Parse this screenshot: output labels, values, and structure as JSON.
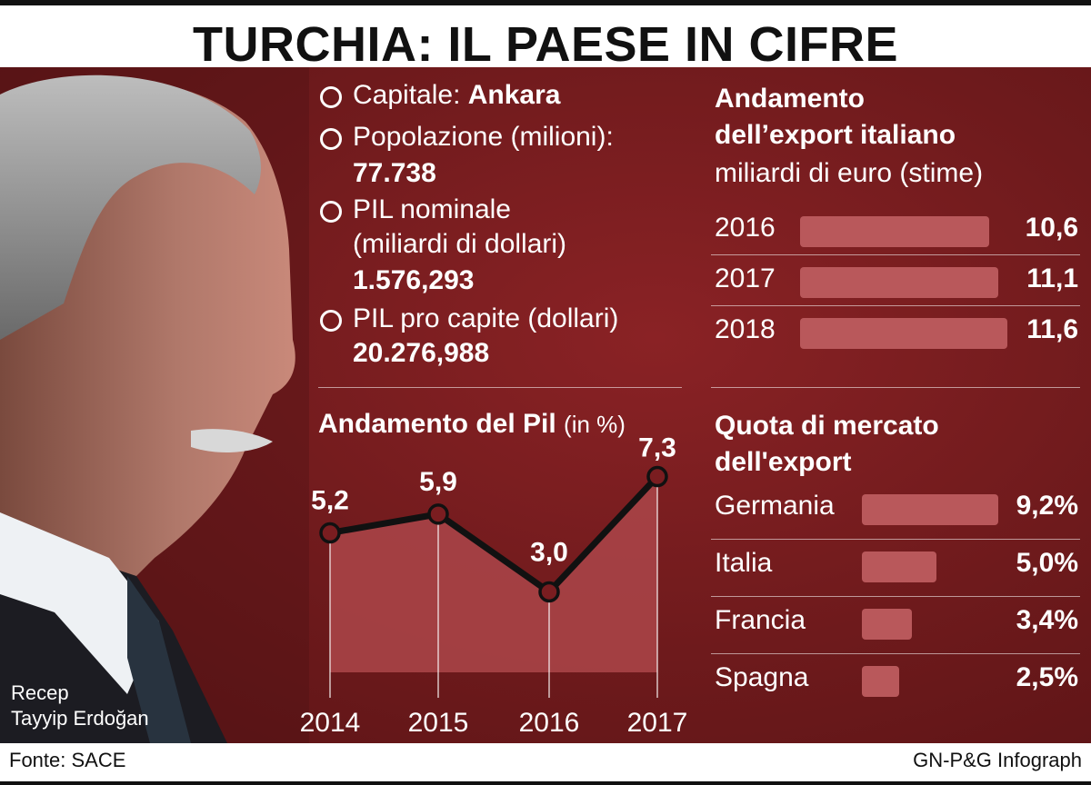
{
  "title": "TURCHIA: IL PAESE IN CIFRE",
  "facts": {
    "capital_label": "Capitale: ",
    "capital_value": "Ankara",
    "population_label": "Popolazione (milioni):",
    "population_value": "77.738",
    "gdp_label_1": "PIL nominale",
    "gdp_label_2": "(miliardi di dollari)",
    "gdp_value": "1.576,293",
    "gdp_pc_label": "PIL pro capite (dollari)",
    "gdp_pc_value": "20.276,988"
  },
  "photo_caption": {
    "line1": "Recep",
    "line2": "Tayyip Erdoğan"
  },
  "footer": {
    "source": "Fonte: SACE",
    "credit": "GN-P&G Infograph"
  },
  "colors": {
    "background": "#6e1a1c",
    "bar": "#b9585b",
    "area": "#a84447",
    "text": "#ffffff"
  },
  "chart_data": [
    {
      "type": "bar",
      "title": "Andamento dell’export italiano",
      "subtitle": "miliardi di euro (stime)",
      "categories": [
        "2016",
        "2017",
        "2018"
      ],
      "values": [
        10.6,
        11.1,
        11.6
      ],
      "value_labels": [
        "10,6",
        "11,1",
        "11,6"
      ],
      "orientation": "horizontal"
    },
    {
      "type": "area",
      "title": "Andamento del Pil",
      "title_unit": "(in %)",
      "x": [
        "2014",
        "2015",
        "2016",
        "2017"
      ],
      "values": [
        5.2,
        5.9,
        3.0,
        7.3
      ],
      "value_labels": [
        "5,2",
        "5,9",
        "3,0",
        "7,3"
      ]
    },
    {
      "type": "bar",
      "title_line1": "Quota di mercato",
      "title_line2": "dell'export",
      "categories": [
        "Germania",
        "Italia",
        "Francia",
        "Spagna"
      ],
      "values": [
        9.2,
        5.0,
        3.4,
        2.5
      ],
      "value_labels": [
        "9,2%",
        "5,0%",
        "3,4%",
        "2,5%"
      ],
      "orientation": "horizontal"
    }
  ]
}
